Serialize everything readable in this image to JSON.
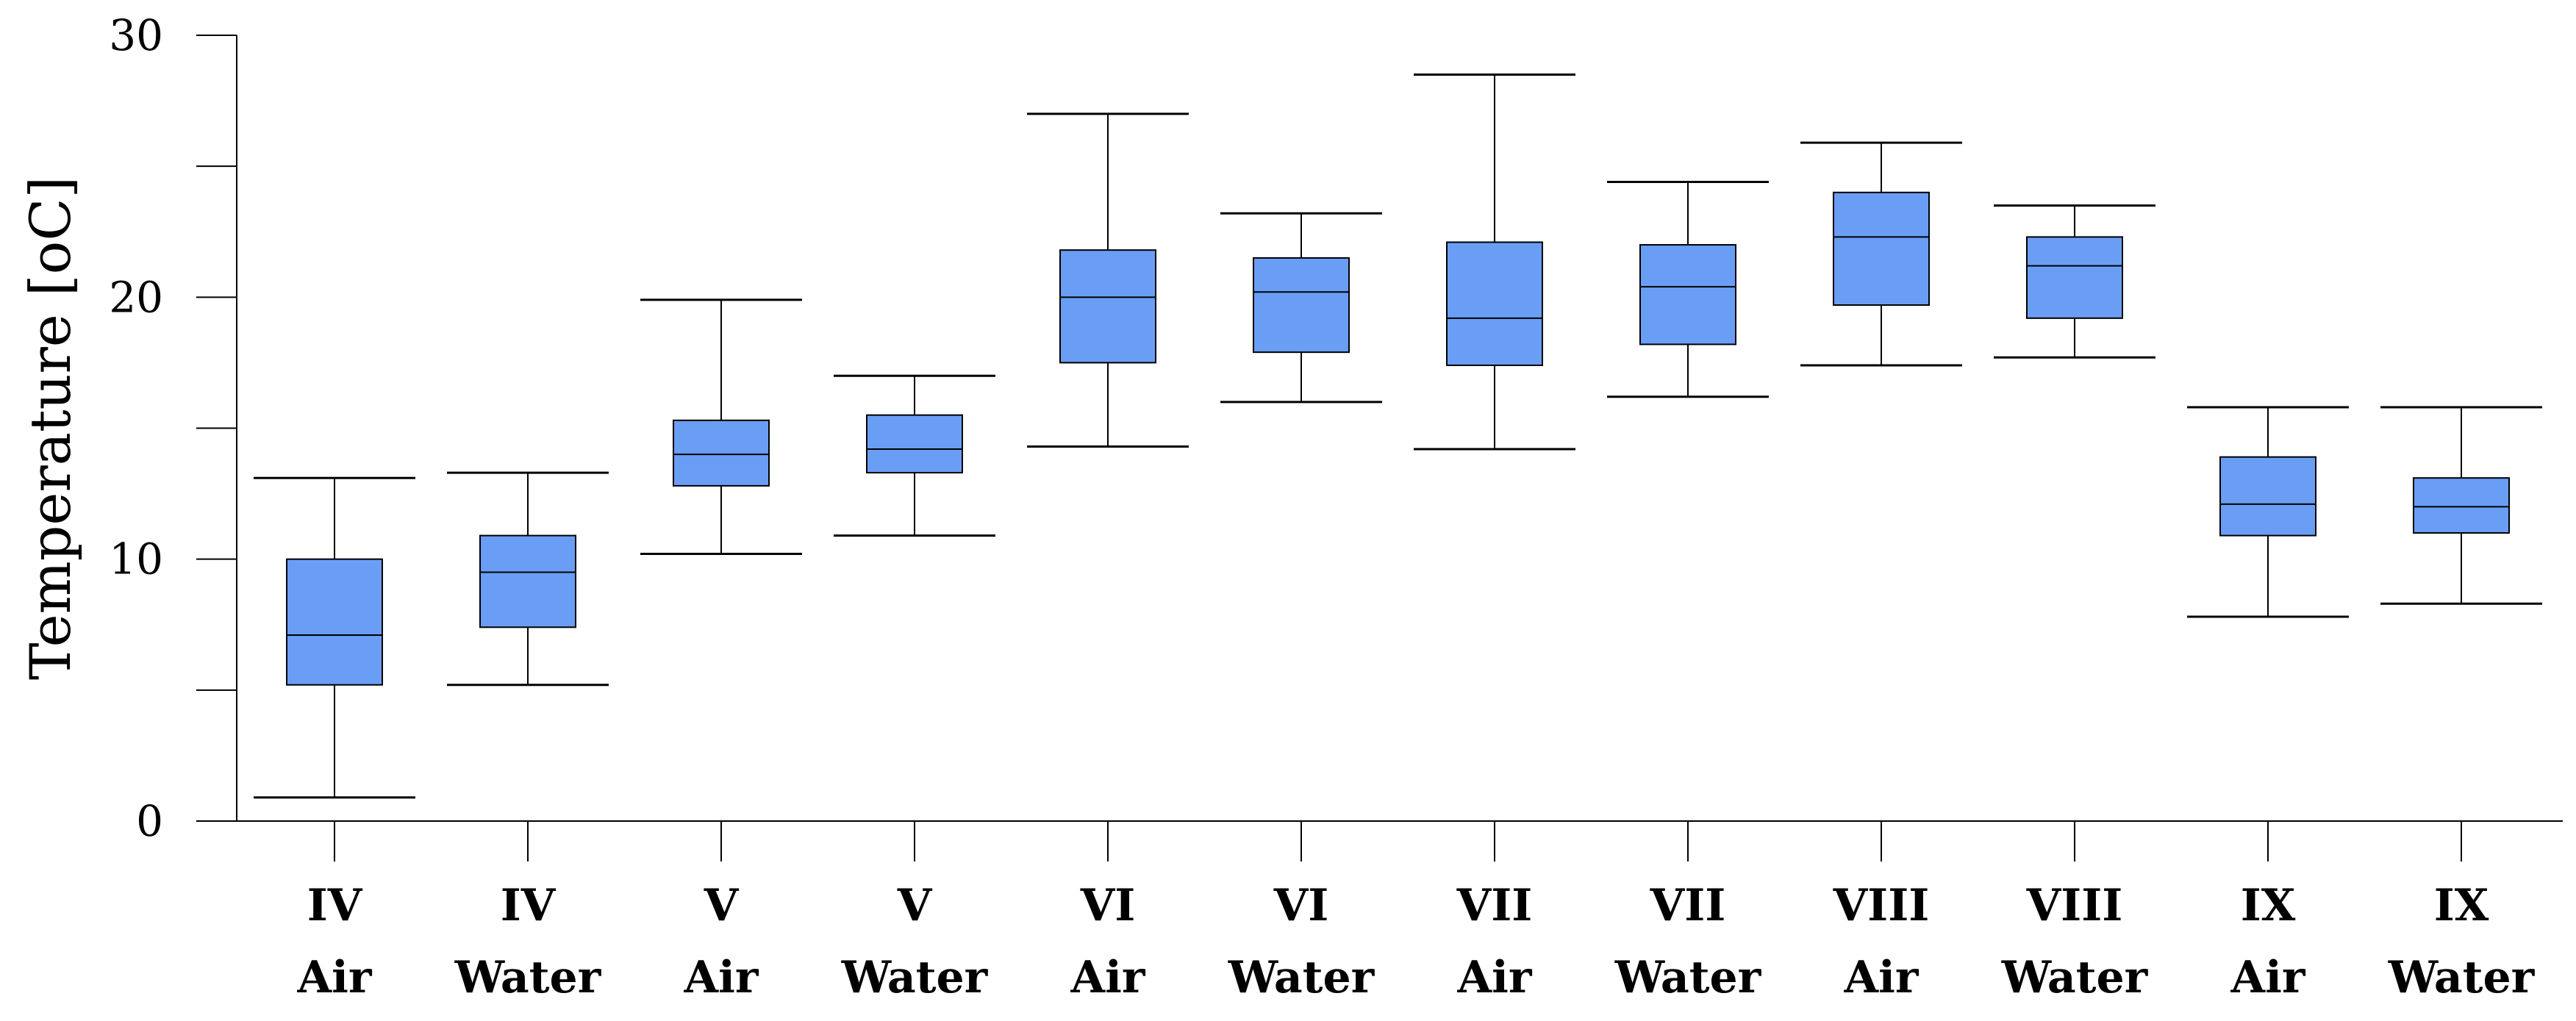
{
  "chart_data": {
    "type": "boxplot",
    "title": "",
    "xlabel": "",
    "ylabel": "Temperature [oC]",
    "ylim": [
      0,
      30
    ],
    "yticks": [
      0,
      10,
      20,
      30
    ],
    "grid": false,
    "colors": {
      "box_fill": "#6a9ef5",
      "stroke": "#000000"
    },
    "categories": [
      {
        "line1": "IV",
        "line2": "Air",
        "min": 0.9,
        "q1": 5.2,
        "median": 7.1,
        "q3": 10.0,
        "max": 13.1
      },
      {
        "line1": "IV",
        "line2": "Water",
        "min": 5.2,
        "q1": 7.4,
        "median": 9.5,
        "q3": 10.9,
        "max": 13.3
      },
      {
        "line1": "V",
        "line2": "Air",
        "min": 10.2,
        "q1": 12.8,
        "median": 14.0,
        "q3": 15.3,
        "max": 19.9
      },
      {
        "line1": "V",
        "line2": "Water",
        "min": 10.9,
        "q1": 13.3,
        "median": 14.2,
        "q3": 15.5,
        "max": 17.0
      },
      {
        "line1": "VI",
        "line2": "Air",
        "min": 14.3,
        "q1": 17.5,
        "median": 20.0,
        "q3": 21.8,
        "max": 27.0
      },
      {
        "line1": "VI",
        "line2": "Water",
        "min": 16.0,
        "q1": 17.9,
        "median": 20.2,
        "q3": 21.5,
        "max": 23.2
      },
      {
        "line1": "VII",
        "line2": "Air",
        "min": 14.2,
        "q1": 17.4,
        "median": 19.2,
        "q3": 22.1,
        "max": 28.5
      },
      {
        "line1": "VII",
        "line2": "Water",
        "min": 16.2,
        "q1": 18.2,
        "median": 20.4,
        "q3": 22.0,
        "max": 24.4
      },
      {
        "line1": "VIII",
        "line2": "Air",
        "min": 17.4,
        "q1": 19.7,
        "median": 22.3,
        "q3": 24.0,
        "max": 25.9
      },
      {
        "line1": "VIII",
        "line2": "Water",
        "min": 17.7,
        "q1": 19.2,
        "median": 21.2,
        "q3": 22.3,
        "max": 23.5
      },
      {
        "line1": "IX",
        "line2": "Air",
        "min": 7.8,
        "q1": 10.9,
        "median": 12.1,
        "q3": 13.9,
        "max": 15.8
      },
      {
        "line1": "IX",
        "line2": "Water",
        "min": 8.3,
        "q1": 11.0,
        "median": 12.0,
        "q3": 13.1,
        "max": 15.8
      }
    ]
  }
}
